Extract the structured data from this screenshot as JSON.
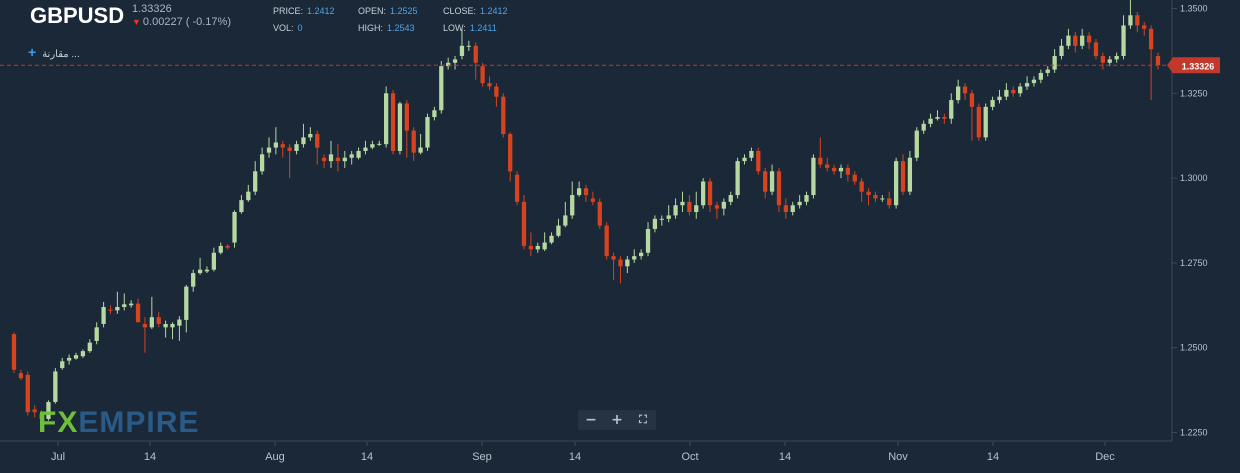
{
  "header": {
    "symbol": "GBPUSD",
    "last_price": "1.33326",
    "change": "0.00227 ( -0.17%)",
    "stats": {
      "price_label": "PRICE:",
      "price": "1.2412",
      "vol_label": "VOL:",
      "vol": "0",
      "open_label": "OPEN:",
      "open": "1.2525",
      "high_label": "HIGH:",
      "high": "1.2543",
      "close_label": "CLOSE:",
      "close": "1.2412",
      "low_label": "LOW:",
      "low": "1.2411"
    },
    "compare_label": "مقارنة ..."
  },
  "controls": {
    "zoom_out": "−",
    "zoom_in": "+",
    "fullscreen": "⛶"
  },
  "logo": {
    "fx": "FX",
    "rest": "EMPIRE"
  },
  "colors": {
    "background": "#1b2838",
    "up": "#b5d9a0",
    "down": "#d7431f",
    "price_line": "#c0392b",
    "axis_text": "#b8c2cc"
  },
  "chart_data": {
    "type": "candlestick",
    "title": "GBPUSD",
    "y_ticks": [
      "1.3500",
      "1.3250",
      "1.3000",
      "1.2750",
      "1.2500",
      "1.2250"
    ],
    "ylim": [
      1.2225,
      1.3525
    ],
    "x_ticks": [
      "Jul",
      "14",
      "Aug",
      "14",
      "Sep",
      "14",
      "Oct",
      "14",
      "Nov",
      "14",
      "Dec"
    ],
    "current_price": 1.33326,
    "current_price_label": "1.33326",
    "grid": false,
    "candles": [
      [
        1.254,
        1.2435,
        1.2545,
        1.2425
      ],
      [
        1.2425,
        1.241,
        1.2435,
        1.2405
      ],
      [
        1.242,
        1.231,
        1.243,
        1.23
      ],
      [
        1.2318,
        1.231,
        1.233,
        1.2295
      ],
      [
        1.2305,
        1.229,
        1.2315,
        1.228
      ],
      [
        1.229,
        1.234,
        1.2345,
        1.2285
      ],
      [
        1.234,
        1.243,
        1.244,
        1.2335
      ],
      [
        1.244,
        1.246,
        1.247,
        1.2435
      ],
      [
        1.2462,
        1.247,
        1.248,
        1.245
      ],
      [
        1.2468,
        1.2478,
        1.2485,
        1.2465
      ],
      [
        1.2475,
        1.249,
        1.2495,
        1.247
      ],
      [
        1.249,
        1.2515,
        1.2525,
        1.2485
      ],
      [
        1.252,
        1.256,
        1.2575,
        1.251
      ],
      [
        1.257,
        1.262,
        1.2635,
        1.256
      ],
      [
        1.2612,
        1.261,
        1.2625,
        1.26
      ],
      [
        1.261,
        1.262,
        1.2665,
        1.26
      ],
      [
        1.262,
        1.2628,
        1.266,
        1.261
      ],
      [
        1.2625,
        1.263,
        1.264,
        1.2618
      ],
      [
        1.263,
        1.2575,
        1.2645,
        1.2575
      ],
      [
        1.257,
        1.256,
        1.259,
        1.2485
      ],
      [
        1.256,
        1.259,
        1.265,
        1.2555
      ],
      [
        1.259,
        1.257,
        1.2605,
        1.256
      ],
      [
        1.256,
        1.257,
        1.258,
        1.253
      ],
      [
        1.256,
        1.257,
        1.2575,
        1.2525
      ],
      [
        1.2565,
        1.2583,
        1.2593,
        1.252
      ],
      [
        1.2582,
        1.268,
        1.2685,
        1.2545
      ],
      [
        1.268,
        1.272,
        1.273,
        1.2665
      ],
      [
        1.272,
        1.273,
        1.2765,
        1.2715
      ],
      [
        1.2725,
        1.273,
        1.274,
        1.272
      ],
      [
        1.273,
        1.278,
        1.2795,
        1.2725
      ],
      [
        1.278,
        1.28,
        1.281,
        1.2775
      ],
      [
        1.28,
        1.2795,
        1.2805,
        1.279
      ],
      [
        1.281,
        1.29,
        1.2905,
        1.2795
      ],
      [
        1.29,
        1.2935,
        1.295,
        1.2895
      ],
      [
        1.2935,
        1.296,
        1.298,
        1.293
      ],
      [
        1.296,
        1.302,
        1.305,
        1.295
      ],
      [
        1.302,
        1.307,
        1.309,
        1.301
      ],
      [
        1.3075,
        1.309,
        1.312,
        1.306
      ],
      [
        1.309,
        1.3105,
        1.315,
        1.307
      ],
      [
        1.31,
        1.309,
        1.311,
        1.306
      ],
      [
        1.309,
        1.308,
        1.31,
        1.3
      ],
      [
        1.308,
        1.31,
        1.311,
        1.307
      ],
      [
        1.31,
        1.312,
        1.316,
        1.309
      ],
      [
        1.312,
        1.313,
        1.315,
        1.311
      ],
      [
        1.313,
        1.309,
        1.314,
        1.304
      ],
      [
        1.306,
        1.305,
        1.307,
        1.303
      ],
      [
        1.305,
        1.307,
        1.311,
        1.303
      ],
      [
        1.306,
        1.305,
        1.31,
        1.302
      ],
      [
        1.305,
        1.306,
        1.308,
        1.303
      ],
      [
        1.306,
        1.307,
        1.308,
        1.304
      ],
      [
        1.306,
        1.308,
        1.309,
        1.3055
      ],
      [
        1.308,
        1.309,
        1.311,
        1.307
      ],
      [
        1.309,
        1.31,
        1.311,
        1.3085
      ],
      [
        1.31,
        1.3101,
        1.311,
        1.3095
      ],
      [
        1.31,
        1.325,
        1.327,
        1.309
      ],
      [
        1.325,
        1.308,
        1.326,
        1.307
      ],
      [
        1.308,
        1.322,
        1.3225,
        1.307
      ],
      [
        1.322,
        1.314,
        1.323,
        1.306
      ],
      [
        1.314,
        1.3075,
        1.315,
        1.305
      ],
      [
        1.3075,
        1.309,
        1.313,
        1.307
      ],
      [
        1.309,
        1.318,
        1.319,
        1.308
      ],
      [
        1.318,
        1.32,
        1.321,
        1.317
      ],
      [
        1.32,
        1.333,
        1.3345,
        1.319
      ],
      [
        1.333,
        1.334,
        1.3355,
        1.332
      ],
      [
        1.334,
        1.335,
        1.336,
        1.332
      ],
      [
        1.336,
        1.339,
        1.344,
        1.335
      ],
      [
        1.339,
        1.339,
        1.3405,
        1.3375
      ],
      [
        1.339,
        1.334,
        1.34,
        1.329
      ],
      [
        1.333,
        1.328,
        1.334,
        1.327
      ],
      [
        1.328,
        1.327,
        1.33,
        1.326
      ],
      [
        1.327,
        1.324,
        1.328,
        1.321
      ],
      [
        1.324,
        1.313,
        1.325,
        1.312
      ],
      [
        1.313,
        1.302,
        1.3135,
        1.299
      ],
      [
        1.301,
        1.293,
        1.302,
        1.292
      ],
      [
        1.293,
        1.28,
        1.295,
        1.279
      ],
      [
        1.28,
        1.279,
        1.284,
        1.277
      ],
      [
        1.279,
        1.28,
        1.281,
        1.278
      ],
      [
        1.279,
        1.281,
        1.284,
        1.2785
      ],
      [
        1.281,
        1.283,
        1.284,
        1.2805
      ],
      [
        1.283,
        1.286,
        1.288,
        1.2825
      ],
      [
        1.286,
        1.289,
        1.293,
        1.2855
      ],
      [
        1.289,
        1.295,
        1.299,
        1.288
      ],
      [
        1.295,
        1.297,
        1.299,
        1.2945
      ],
      [
        1.297,
        1.295,
        1.298,
        1.293
      ],
      [
        1.294,
        1.293,
        1.296,
        1.292
      ],
      [
        1.293,
        1.286,
        1.294,
        1.285
      ],
      [
        1.286,
        1.277,
        1.287,
        1.276
      ],
      [
        1.277,
        1.276,
        1.278,
        1.27
      ],
      [
        1.276,
        1.274,
        1.277,
        1.269
      ],
      [
        1.274,
        1.276,
        1.277,
        1.272
      ],
      [
        1.276,
        1.277,
        1.279,
        1.275
      ],
      [
        1.277,
        1.278,
        1.279,
        1.276
      ],
      [
        1.278,
        1.285,
        1.287,
        1.277
      ],
      [
        1.285,
        1.288,
        1.289,
        1.284
      ],
      [
        1.288,
        1.288,
        1.289,
        1.286
      ],
      [
        1.288,
        1.289,
        1.292,
        1.287
      ],
      [
        1.289,
        1.292,
        1.294,
        1.288
      ],
      [
        1.292,
        1.293,
        1.296,
        1.29
      ],
      [
        1.293,
        1.29,
        1.295,
        1.289
      ],
      [
        1.29,
        1.292,
        1.296,
        1.288
      ],
      [
        1.292,
        1.299,
        1.3,
        1.291
      ],
      [
        1.299,
        1.292,
        1.3,
        1.29
      ],
      [
        1.292,
        1.291,
        1.293,
        1.288
      ],
      [
        1.291,
        1.293,
        1.294,
        1.289
      ],
      [
        1.293,
        1.295,
        1.296,
        1.292
      ],
      [
        1.295,
        1.305,
        1.306,
        1.294
      ],
      [
        1.305,
        1.306,
        1.307,
        1.304
      ],
      [
        1.306,
        1.308,
        1.309,
        1.305
      ],
      [
        1.308,
        1.302,
        1.309,
        1.301
      ],
      [
        1.302,
        1.296,
        1.303,
        1.294
      ],
      [
        1.296,
        1.302,
        1.304,
        1.295
      ],
      [
        1.302,
        1.292,
        1.303,
        1.29
      ],
      [
        1.292,
        1.29,
        1.294,
        1.288
      ],
      [
        1.29,
        1.292,
        1.293,
        1.289
      ],
      [
        1.292,
        1.293,
        1.295,
        1.291
      ],
      [
        1.293,
        1.295,
        1.296,
        1.292
      ],
      [
        1.295,
        1.306,
        1.307,
        1.294
      ],
      [
        1.306,
        1.304,
        1.312,
        1.303
      ],
      [
        1.304,
        1.303,
        1.306,
        1.302
      ],
      [
        1.303,
        1.302,
        1.304,
        1.301
      ],
      [
        1.302,
        1.303,
        1.304,
        1.3
      ],
      [
        1.303,
        1.301,
        1.304,
        1.299
      ],
      [
        1.301,
        1.299,
        1.302,
        1.298
      ],
      [
        1.299,
        1.296,
        1.3,
        1.293
      ],
      [
        1.296,
        1.295,
        1.297,
        1.292
      ],
      [
        1.295,
        1.294,
        1.296,
        1.293
      ],
      [
        1.294,
        1.294,
        1.295,
        1.293
      ],
      [
        1.294,
        1.292,
        1.296,
        1.291
      ],
      [
        1.292,
        1.305,
        1.306,
        1.291
      ],
      [
        1.305,
        1.296,
        1.307,
        1.295
      ],
      [
        1.296,
        1.306,
        1.308,
        1.295
      ],
      [
        1.306,
        1.314,
        1.315,
        1.305
      ],
      [
        1.314,
        1.316,
        1.317,
        1.313
      ],
      [
        1.316,
        1.3175,
        1.319,
        1.315
      ],
      [
        1.3175,
        1.318,
        1.32,
        1.317
      ],
      [
        1.318,
        1.3175,
        1.319,
        1.316
      ],
      [
        1.3175,
        1.323,
        1.325,
        1.316
      ],
      [
        1.323,
        1.327,
        1.329,
        1.322
      ],
      [
        1.327,
        1.325,
        1.328,
        1.323
      ],
      [
        1.325,
        1.321,
        1.326,
        1.311
      ],
      [
        1.321,
        1.312,
        1.322,
        1.311
      ],
      [
        1.312,
        1.321,
        1.322,
        1.311
      ],
      [
        1.321,
        1.323,
        1.324,
        1.32
      ],
      [
        1.323,
        1.324,
        1.326,
        1.322
      ],
      [
        1.324,
        1.326,
        1.328,
        1.323
      ],
      [
        1.326,
        1.325,
        1.327,
        1.324
      ],
      [
        1.325,
        1.327,
        1.328,
        1.324
      ],
      [
        1.327,
        1.328,
        1.33,
        1.326
      ],
      [
        1.328,
        1.329,
        1.33,
        1.327
      ],
      [
        1.329,
        1.331,
        1.332,
        1.328
      ],
      [
        1.331,
        1.332,
        1.333,
        1.33
      ],
      [
        1.332,
        1.336,
        1.338,
        1.331
      ],
      [
        1.336,
        1.339,
        1.341,
        1.335
      ],
      [
        1.339,
        1.342,
        1.344,
        1.338
      ],
      [
        1.342,
        1.339,
        1.343,
        1.337
      ],
      [
        1.339,
        1.342,
        1.344,
        1.338
      ],
      [
        1.342,
        1.34,
        1.343,
        1.338
      ],
      [
        1.34,
        1.336,
        1.341,
        1.335
      ],
      [
        1.336,
        1.334,
        1.337,
        1.332
      ],
      [
        1.334,
        1.335,
        1.336,
        1.333
      ],
      [
        1.335,
        1.336,
        1.337,
        1.334
      ],
      [
        1.336,
        1.345,
        1.348,
        1.335
      ],
      [
        1.345,
        1.348,
        1.353,
        1.344
      ],
      [
        1.348,
        1.345,
        1.349,
        1.343
      ],
      [
        1.345,
        1.344,
        1.346,
        1.342
      ],
      [
        1.344,
        1.338,
        1.345,
        1.323
      ],
      [
        1.336,
        1.3333,
        1.337,
        1.332
      ]
    ]
  }
}
